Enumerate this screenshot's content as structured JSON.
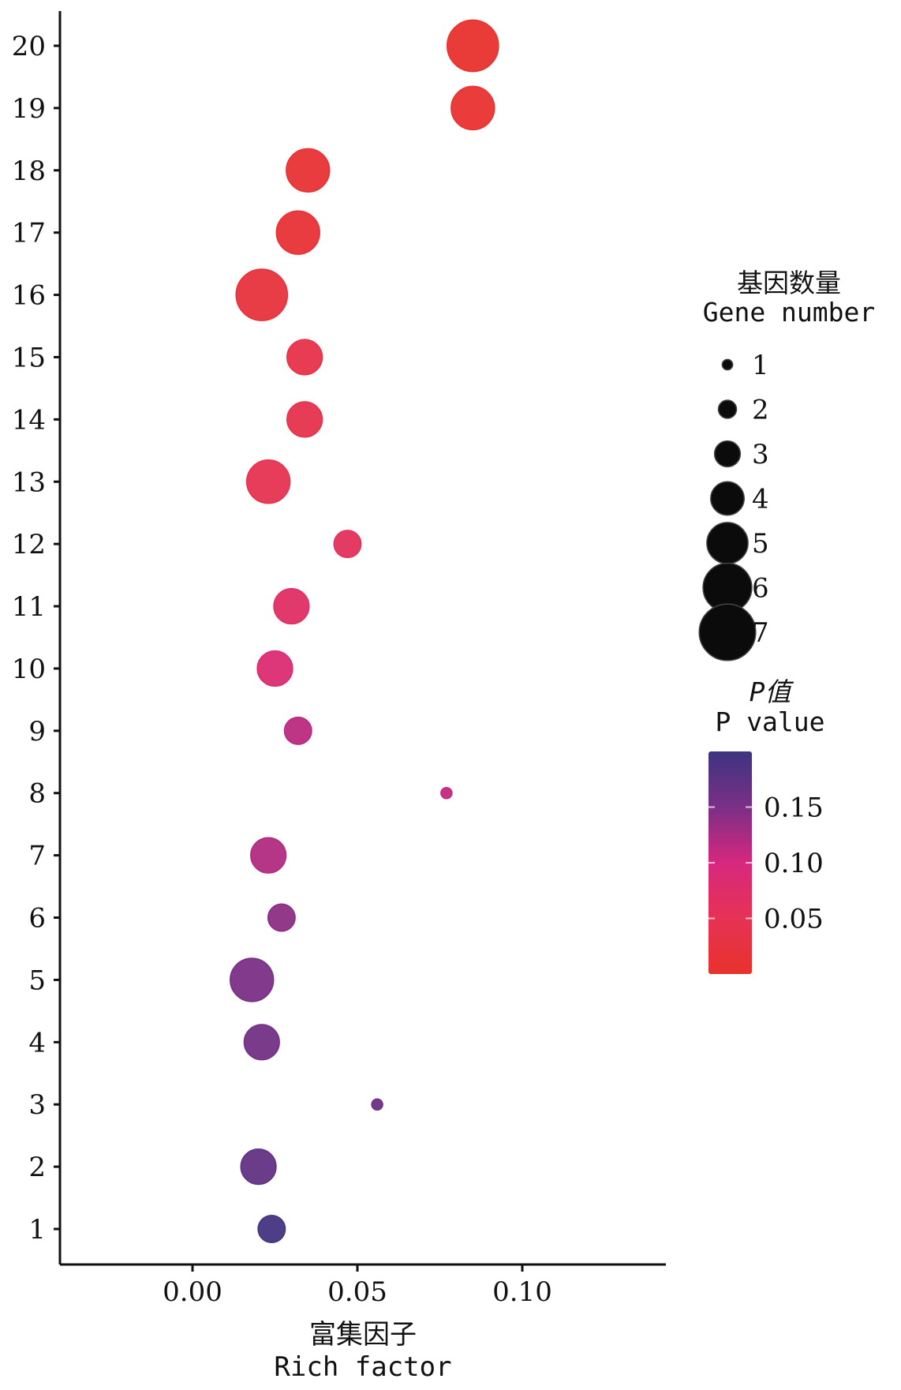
{
  "chart_data": {
    "type": "scatter",
    "xlabel": "富集因子",
    "xlabel_en": "Rich factor",
    "ylabel": "",
    "xlim": [
      -0.04,
      0.145
    ],
    "ylim": [
      0.5,
      20.5
    ],
    "x_ticks": [
      "0.00",
      "0.05",
      "0.10"
    ],
    "x_tick_values": [
      0.0,
      0.05,
      0.1
    ],
    "y_ticks": [
      "1",
      "2",
      "3",
      "4",
      "5",
      "6",
      "7",
      "8",
      "9",
      "10",
      "11",
      "12",
      "13",
      "14",
      "15",
      "16",
      "17",
      "18",
      "19",
      "20"
    ],
    "grid": false,
    "legend_position": "right",
    "points": [
      {
        "y": 1,
        "x": 0.024,
        "gene_number": 3,
        "p_value": 0.195
      },
      {
        "y": 2,
        "x": 0.02,
        "gene_number": 4,
        "p_value": 0.17
      },
      {
        "y": 3,
        "x": 0.056,
        "gene_number": 1,
        "p_value": 0.16
      },
      {
        "y": 4,
        "x": 0.021,
        "gene_number": 4,
        "p_value": 0.155
      },
      {
        "y": 5,
        "x": 0.018,
        "gene_number": 5,
        "p_value": 0.15
      },
      {
        "y": 6,
        "x": 0.027,
        "gene_number": 3,
        "p_value": 0.14
      },
      {
        "y": 7,
        "x": 0.023,
        "gene_number": 4,
        "p_value": 0.12
      },
      {
        "y": 8,
        "x": 0.077,
        "gene_number": 1,
        "p_value": 0.11
      },
      {
        "y": 9,
        "x": 0.032,
        "gene_number": 3,
        "p_value": 0.115
      },
      {
        "y": 10,
        "x": 0.025,
        "gene_number": 4,
        "p_value": 0.085
      },
      {
        "y": 11,
        "x": 0.03,
        "gene_number": 4,
        "p_value": 0.07
      },
      {
        "y": 12,
        "x": 0.047,
        "gene_number": 3,
        "p_value": 0.06
      },
      {
        "y": 13,
        "x": 0.023,
        "gene_number": 5,
        "p_value": 0.045
      },
      {
        "y": 14,
        "x": 0.034,
        "gene_number": 4,
        "p_value": 0.04
      },
      {
        "y": 15,
        "x": 0.034,
        "gene_number": 4,
        "p_value": 0.035
      },
      {
        "y": 16,
        "x": 0.021,
        "gene_number": 6,
        "p_value": 0.02
      },
      {
        "y": 17,
        "x": 0.032,
        "gene_number": 5,
        "p_value": 0.012
      },
      {
        "y": 18,
        "x": 0.035,
        "gene_number": 5,
        "p_value": 0.01
      },
      {
        "y": 19,
        "x": 0.085,
        "gene_number": 5,
        "p_value": 0.005
      },
      {
        "y": 20,
        "x": 0.085,
        "gene_number": 6,
        "p_value": 0.003
      }
    ],
    "size_legend": {
      "title": "基因数量",
      "title_en": "Gene number",
      "values": [
        1,
        2,
        3,
        4,
        5,
        6,
        7
      ]
    },
    "color_legend": {
      "title": "P值",
      "title_en": "P value",
      "ticks": [
        "0.15",
        "0.10",
        "0.05"
      ],
      "tick_values": [
        0.15,
        0.1,
        0.05
      ],
      "range": [
        0.0,
        0.2
      ],
      "low_color": "#e8322c",
      "mid_color": "#d6287e",
      "high_color": "#3d3480"
    }
  }
}
